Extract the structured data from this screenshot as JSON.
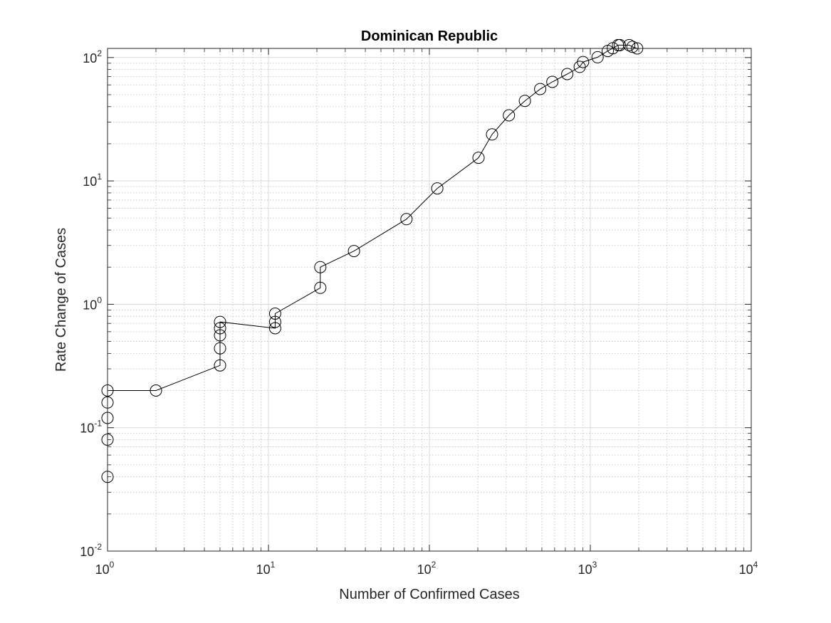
{
  "chart_data": {
    "type": "line",
    "title": "Dominican Republic",
    "xlabel": "Number of Confirmed Cases",
    "ylabel": "Rate Change of Cases",
    "xscale": "log",
    "yscale": "log",
    "xlim": [
      1,
      10000
    ],
    "ylim": [
      0.01,
      150
    ],
    "grid": true,
    "minor_grid": true,
    "marker": "open-circle",
    "line_color": "#000000",
    "x_ticks": [
      {
        "base": "10",
        "exp": "0",
        "value": 1
      },
      {
        "base": "10",
        "exp": "1",
        "value": 10
      },
      {
        "base": "10",
        "exp": "2",
        "value": 100
      },
      {
        "base": "10",
        "exp": "3",
        "value": 1000
      },
      {
        "base": "10",
        "exp": "4",
        "value": 10000
      }
    ],
    "y_ticks": [
      {
        "base": "10",
        "exp": "-2",
        "value": 0.01
      },
      {
        "base": "10",
        "exp": "-1",
        "value": 0.1
      },
      {
        "base": "10",
        "exp": "0",
        "value": 1
      },
      {
        "base": "10",
        "exp": "1",
        "value": 10
      },
      {
        "base": "10",
        "exp": "2",
        "value": 100
      }
    ],
    "series": [
      {
        "points": [
          [
            1,
            0.04
          ],
          [
            1,
            0.08
          ],
          [
            1,
            0.12
          ],
          [
            1,
            0.16
          ],
          [
            1,
            0.2
          ],
          [
            2,
            0.2
          ],
          [
            5,
            0.32
          ],
          [
            5,
            0.44
          ],
          [
            5,
            0.56
          ],
          [
            5,
            0.64
          ],
          [
            5,
            0.72
          ],
          [
            11,
            0.64
          ],
          [
            11,
            0.72
          ],
          [
            11,
            0.84
          ],
          [
            21,
            1.36
          ],
          [
            21,
            2.0
          ],
          [
            34,
            2.7
          ],
          [
            72,
            4.9
          ],
          [
            112,
            8.7
          ],
          [
            202,
            15.4
          ],
          [
            245,
            23.8
          ],
          [
            312,
            34
          ],
          [
            392,
            44.5
          ],
          [
            488,
            55.5
          ],
          [
            581,
            63.5
          ],
          [
            719,
            73.5
          ],
          [
            859,
            84
          ],
          [
            901,
            92
          ],
          [
            1109,
            100.5
          ],
          [
            1284,
            113
          ],
          [
            1380,
            119
          ],
          [
            1488,
            126
          ],
          [
            1527,
            126
          ],
          [
            1745,
            126
          ],
          [
            1828,
            122
          ],
          [
            1956,
            118.5
          ]
        ]
      }
    ]
  }
}
